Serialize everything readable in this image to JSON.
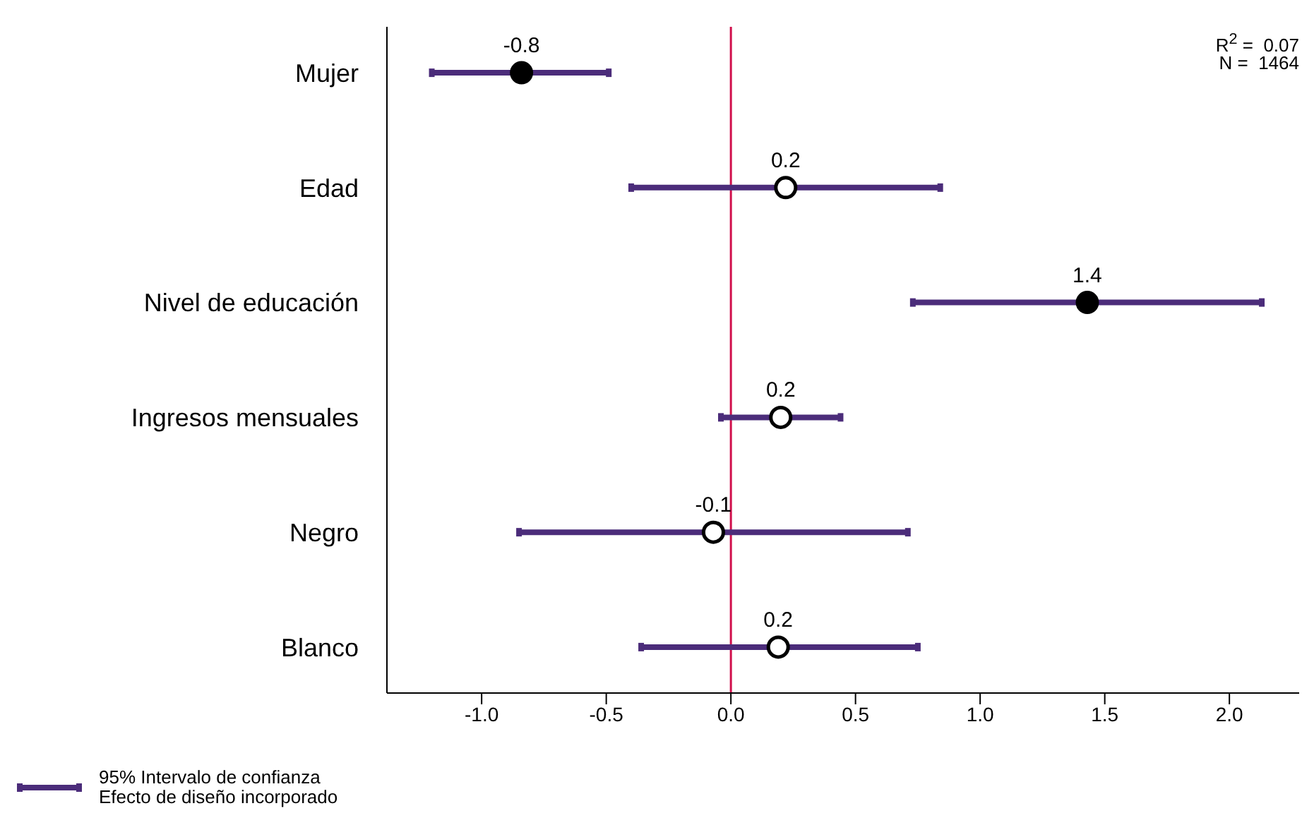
{
  "chart_data": {
    "type": "scatter",
    "orientation": "horizontal",
    "categories": [
      "Mujer",
      "Edad",
      "Nivel de educación",
      "Ingresos mensuales",
      "Negro",
      "Blanco"
    ],
    "series": [
      {
        "name": "95% Intervalo de confianza\nEfecto de diseño incorporado",
        "color": "#4b2c7a",
        "values": [
          -0.84,
          0.22,
          1.43,
          0.2,
          -0.07,
          0.19
        ],
        "errors": [
          [
            -1.2,
            -0.49
          ],
          [
            -0.4,
            0.84
          ],
          [
            0.73,
            2.13
          ],
          [
            -0.04,
            0.44
          ],
          [
            -0.85,
            0.71
          ],
          [
            -0.36,
            0.75
          ]
        ],
        "colors": [
          "#000000",
          "#ffffff",
          "#000000",
          "#ffffff",
          "#ffffff",
          "#ffffff"
        ],
        "value_labels": [
          "-0.8",
          "0.2",
          "1.4",
          "0.2",
          "-0.1",
          "0.2"
        ]
      }
    ],
    "xlim": [
      -1.38,
      2.28
    ],
    "xticks": [
      {
        "value": -1,
        "label": "-1.0"
      },
      {
        "value": -0.5,
        "label": "-0.5"
      },
      {
        "value": 0,
        "label": "0.0"
      },
      {
        "value": 0.5,
        "label": "0.5"
      },
      {
        "value": 1,
        "label": "1.0"
      },
      {
        "value": 1.5,
        "label": "1.5"
      },
      {
        "value": 2,
        "label": "2.0"
      }
    ],
    "ref_lines": [
      {
        "axis": "x",
        "value": 0,
        "color": "#d0104c"
      }
    ],
    "annotations": [
      "R$^{2}$ =  0.07",
      "N =  1464"
    ],
    "marker": "circle",
    "legend": "bottom left",
    "grid": false
  }
}
